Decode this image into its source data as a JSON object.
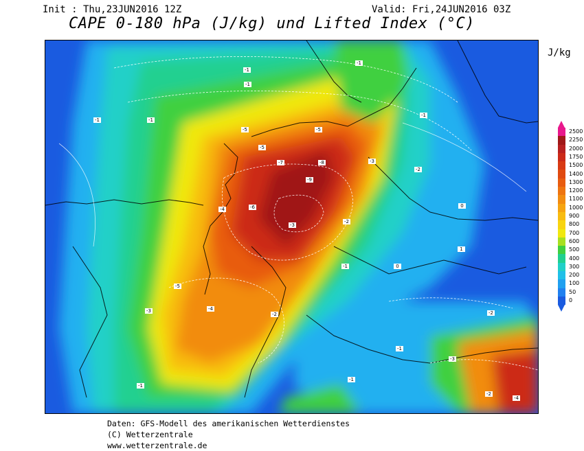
{
  "header": {
    "init": "Init : Thu,23JUN2016 12Z",
    "valid": "Valid: Fri,24JUN2016 03Z",
    "title": "CAPE 0-180 hPa (J/kg) und Lifted Index (°C)"
  },
  "legend": {
    "unit": "J/kg",
    "levels": [
      "2500",
      "2250",
      "2000",
      "1750",
      "1500",
      "1400",
      "1300",
      "1200",
      "1100",
      "1000",
      "900",
      "800",
      "700",
      "600",
      "500",
      "400",
      "300",
      "200",
      "100",
      "50",
      "0"
    ],
    "colors": [
      "#e8188c",
      "#a01818",
      "#b82020",
      "#cc2a18",
      "#d83a14",
      "#e04a10",
      "#e85c10",
      "#ee7410",
      "#f28c10",
      "#f6a410",
      "#f8bc10",
      "#f8d410",
      "#f0e810",
      "#a8e020",
      "#40d040",
      "#20d090",
      "#20d0c8",
      "#20c0e8",
      "#20a0f0",
      "#2080f0",
      "#1a5be0"
    ]
  },
  "map_labels": {
    "lifted_index": [
      "-1",
      "-1",
      "-1",
      "-1",
      "-5",
      "-5",
      "-5",
      "-7",
      "-8",
      "-9",
      "-6",
      "-4",
      "-3",
      "-2",
      "-2",
      "-3",
      "0",
      "0",
      "-1",
      "-1",
      "-5",
      "-4",
      "-3",
      "-2",
      "-1",
      "1",
      "-1",
      "-1",
      "-2",
      "-1",
      "-3",
      "-2",
      "-4"
    ]
  },
  "footer": {
    "line1": "Daten: GFS-Modell des amerikanischen Wetterdienstes",
    "line2": "(C) Wetterzentrale",
    "line3": "www.wetterzentrale.de"
  }
}
